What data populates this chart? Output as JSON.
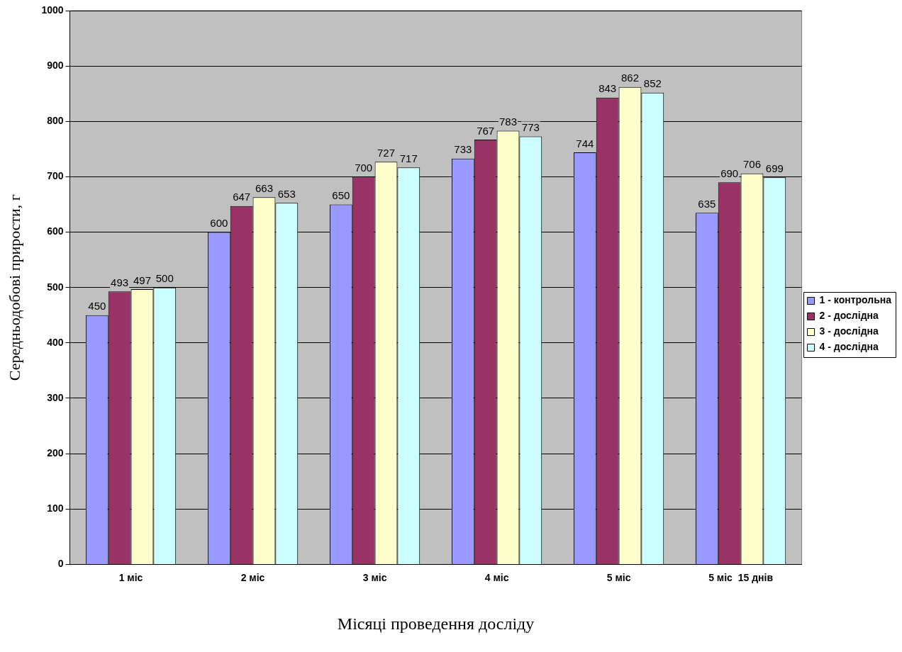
{
  "chart_data": {
    "type": "bar",
    "xlabel": "Місяці проведення досліду",
    "ylabel": "Середньодобові прирости, г",
    "categories": [
      "1 міс",
      "2 міс",
      "3 міс",
      "4 міс",
      "5 міс",
      "5 міс  15 днів"
    ],
    "series": [
      {
        "name": "1 - контрольна",
        "color": "#9999ff",
        "values": [
          450,
          600,
          650,
          733,
          744,
          635
        ]
      },
      {
        "name": "2 - дослідна",
        "color": "#993366",
        "values": [
          493,
          647,
          700,
          767,
          843,
          690
        ]
      },
      {
        "name": "3 - дослідна",
        "color": "#ffffcc",
        "values": [
          497,
          663,
          727,
          783,
          862,
          706
        ]
      },
      {
        "name": "4 - дослідна",
        "color": "#ccffff",
        "values": [
          500,
          653,
          717,
          773,
          852,
          699
        ]
      }
    ],
    "ylim": [
      0,
      1000
    ],
    "yticks": [
      0,
      100,
      200,
      300,
      400,
      500,
      600,
      700,
      800,
      900,
      1000
    ],
    "grid": "y",
    "legend": "right",
    "data_labels": true
  }
}
